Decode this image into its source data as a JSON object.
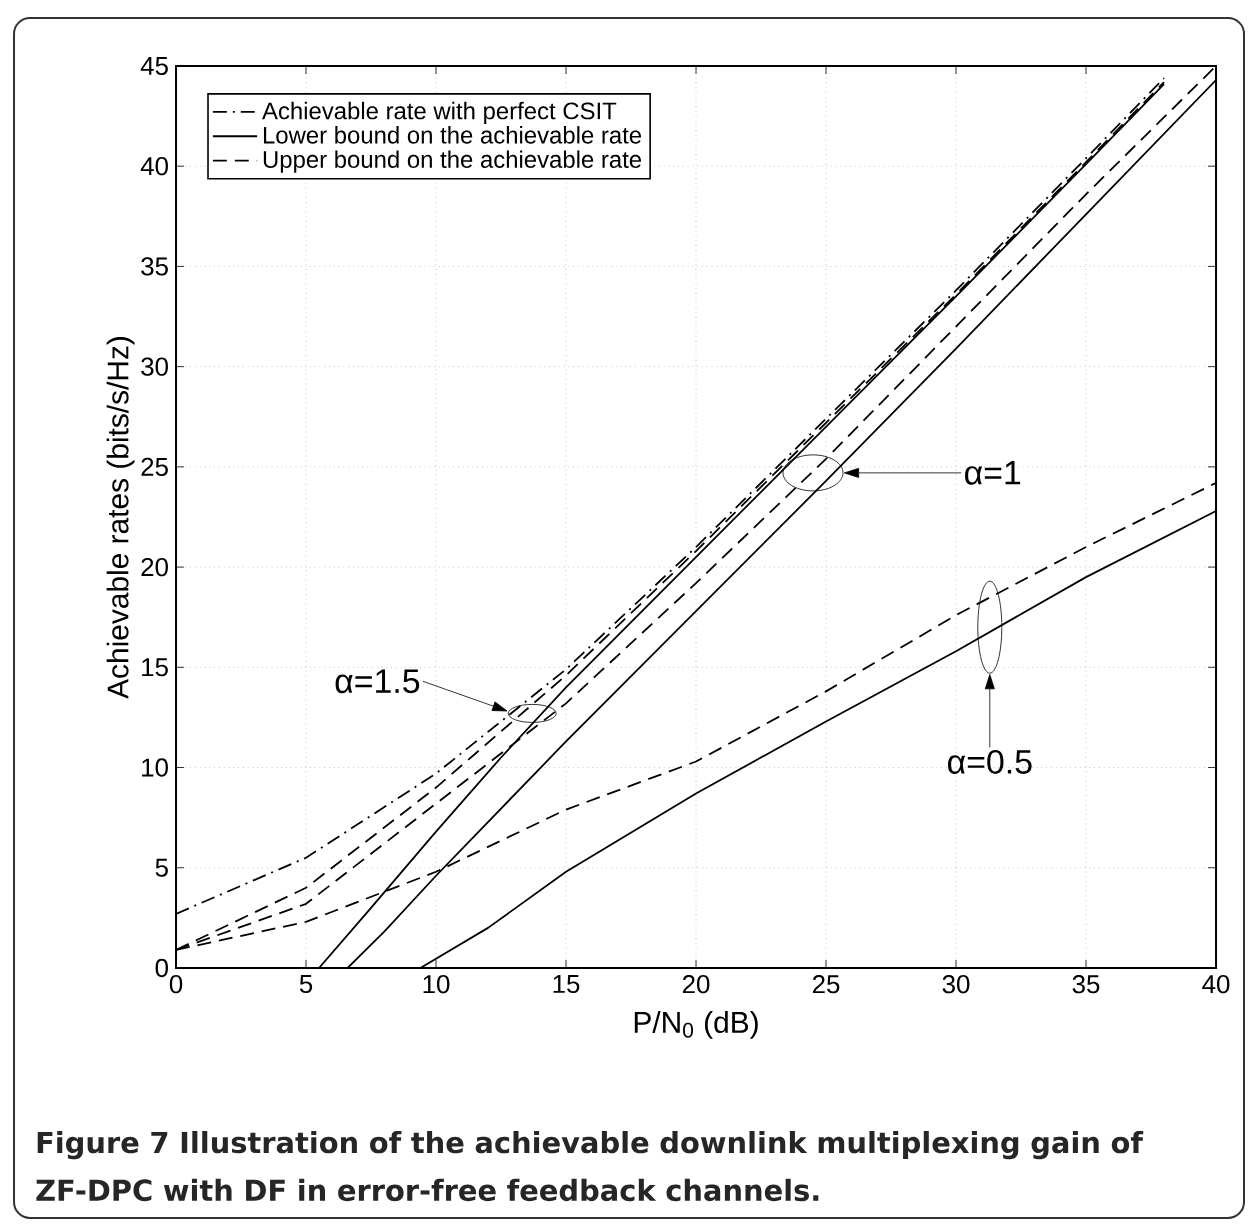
{
  "chart_data": {
    "type": "line",
    "xlabel": "P/N$_{0}$ (dB)",
    "ylabel": "Achievable rates (bits/s/Hz)",
    "xlim": [
      0,
      40
    ],
    "ylim": [
      0,
      45
    ],
    "xticks": [
      0,
      5,
      10,
      15,
      20,
      25,
      30,
      35,
      40
    ],
    "yticks": [
      0,
      5,
      10,
      15,
      20,
      25,
      30,
      35,
      40,
      45
    ],
    "grid": true,
    "legend": "top left",
    "marker": "none",
    "series": [
      {
        "name": "Achievable rate with perfect CSIT",
        "color": "#000000",
        "line_style": "dashdot",
        "x": [
          0,
          5,
          10,
          15,
          20,
          25,
          30,
          35,
          38
        ],
        "values": [
          2.7,
          5.5,
          9.7,
          14.9,
          21.0,
          27.4,
          33.8,
          40.4,
          44.4
        ]
      },
      {
        "name": "Lower bound on the achievable rate",
        "color": "#000000",
        "line_style": "solid",
        "x": [
          5.5,
          7.5,
          10,
          12.5,
          15,
          20,
          25,
          30,
          35,
          38
        ],
        "values": [
          0,
          3.0,
          6.8,
          10.5,
          14.0,
          20.5,
          27.0,
          33.5,
          40.1,
          44.1
        ]
      },
      {
        "name": "Upper bound on the achievable rate",
        "color": "#000000",
        "line_style": "dashed",
        "x": [
          0,
          5,
          10,
          15,
          20,
          25,
          30,
          35,
          38
        ],
        "values": [
          0.9,
          4.0,
          9.0,
          14.6,
          20.8,
          27.2,
          33.6,
          40.2,
          44.2
        ]
      },
      {
        "color": "#000000",
        "line_style": "solid",
        "x": [
          6.6,
          8,
          10,
          15,
          20,
          25,
          30,
          35,
          40
        ],
        "values": [
          0,
          1.8,
          4.6,
          11.3,
          17.8,
          24.3,
          30.9,
          37.6,
          44.3
        ]
      },
      {
        "color": "#000000",
        "line_style": "dashed",
        "x": [
          0,
          5,
          10,
          15,
          20,
          25,
          30,
          35,
          40
        ],
        "values": [
          0.9,
          3.2,
          8.2,
          13.2,
          19.2,
          25.4,
          32.0,
          38.6,
          45
        ]
      },
      {
        "color": "#000000",
        "line_style": "solid",
        "x": [
          9.4,
          12,
          15,
          20,
          25,
          30,
          35,
          40
        ],
        "values": [
          0,
          2.0,
          4.8,
          8.7,
          12.3,
          15.8,
          19.5,
          22.8
        ]
      },
      {
        "color": "#000000",
        "line_style": "dashed",
        "x": [
          0,
          5,
          10,
          15,
          20,
          25,
          30,
          35,
          40
        ],
        "values": [
          0.9,
          2.3,
          4.8,
          7.9,
          10.3,
          13.8,
          17.6,
          21.0,
          24.2
        ]
      }
    ],
    "annotations": [
      "α=1.5",
      "α=1",
      "α=0.5",
      "Figure 7 Illustration of the achievable downlink multiplexing gain of ZF-DPC with DF in error-free feedback channels."
    ]
  }
}
